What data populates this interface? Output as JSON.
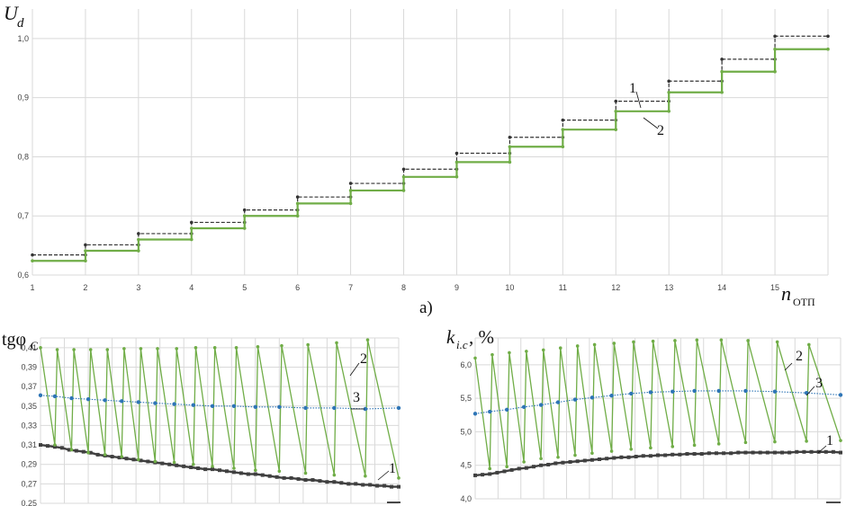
{
  "chart_data": [
    {
      "type": "line",
      "ylabel_main": "U",
      "ylabel_sub": "d",
      "xlabel_main": "n",
      "xlabel_sub": "ОТП",
      "panel_label": "а)",
      "xlim": [
        1,
        16
      ],
      "ylim": [
        0.6,
        1.05
      ],
      "y_ticks": [
        "0,6",
        "0,7",
        "0,8",
        "0,9",
        "1,0"
      ],
      "x_ticks": [
        "1",
        "2",
        "3",
        "4",
        "5",
        "6",
        "7",
        "8",
        "9",
        "10",
        "11",
        "12",
        "13",
        "14",
        "15"
      ],
      "colors": {
        "1": "#333333",
        "2": "#70ad47"
      },
      "series": [
        {
          "name": "1",
          "style": "dashed-step",
          "values": [
            0.634,
            0.651,
            0.67,
            0.689,
            0.71,
            0.732,
            0.755,
            0.779,
            0.806,
            0.833,
            0.862,
            0.894,
            0.928,
            0.965,
            1.004
          ]
        },
        {
          "name": "2",
          "style": "solid-step",
          "values": [
            0.624,
            0.641,
            0.66,
            0.679,
            0.7,
            0.721,
            0.743,
            0.766,
            0.791,
            0.817,
            0.846,
            0.877,
            0.909,
            0.944,
            0.982
          ]
        }
      ],
      "annotations": [
        "1",
        "2"
      ]
    },
    {
      "type": "line",
      "ylabel": "tgφ",
      "ylabel_sub": "С",
      "ylim": [
        0.25,
        0.42
      ],
      "y_ticks": [
        "0,25",
        "0,27",
        "0,29",
        "0,31",
        "0,33",
        "0,35",
        "0,37",
        "0,39",
        "0,41"
      ],
      "colors": {
        "1": "#404040",
        "2": "#70ad47",
        "3": "#2e75b6"
      },
      "series": [
        {
          "name": "1",
          "x": [
            1,
            1.3,
            1.6,
            1.9,
            2.2,
            2.5,
            2.8,
            3.1,
            3.4,
            3.7,
            4,
            4.3,
            4.6,
            4.9,
            5.2,
            5.5,
            5.8,
            6.1,
            6.4,
            6.7,
            7,
            7.3,
            7.6,
            7.9,
            8.2,
            8.5,
            8.8,
            9.1,
            9.4,
            9.7,
            10,
            10.3,
            10.6,
            10.9,
            11.2,
            11.5,
            11.8,
            12.1,
            12.4,
            12.7,
            13,
            13.3,
            13.6,
            13.9,
            14.2,
            14.5,
            14.8,
            15.1,
            15.4,
            15.7,
            16
          ],
          "values": [
            0.31,
            0.309,
            0.308,
            0.307,
            0.305,
            0.304,
            0.303,
            0.302,
            0.3,
            0.299,
            0.298,
            0.297,
            0.296,
            0.295,
            0.294,
            0.293,
            0.292,
            0.291,
            0.29,
            0.289,
            0.288,
            0.287,
            0.286,
            0.285,
            0.285,
            0.284,
            0.283,
            0.282,
            0.281,
            0.28,
            0.28,
            0.279,
            0.278,
            0.277,
            0.276,
            0.276,
            0.275,
            0.274,
            0.274,
            0.273,
            0.272,
            0.272,
            0.271,
            0.27,
            0.27,
            0.269,
            0.269,
            0.268,
            0.268,
            0.267,
            0.267
          ]
        },
        {
          "name": "2",
          "x": [
            1,
            1.6,
            1.7,
            2.3,
            2.4,
            3.0,
            3.1,
            3.7,
            3.8,
            4.4,
            4.5,
            5.1,
            5.2,
            5.8,
            5.9,
            6.6,
            6.7,
            7.4,
            7.5,
            8.2,
            8.3,
            9.1,
            9.2,
            10.0,
            10.1,
            11.0,
            11.1,
            12.1,
            12.2,
            13.3,
            13.4,
            14.6,
            14.7,
            16
          ],
          "values": [
            0.41,
            0.31,
            0.408,
            0.305,
            0.408,
            0.302,
            0.408,
            0.3,
            0.408,
            0.298,
            0.409,
            0.295,
            0.409,
            0.293,
            0.409,
            0.292,
            0.409,
            0.29,
            0.41,
            0.288,
            0.41,
            0.286,
            0.41,
            0.284,
            0.411,
            0.283,
            0.412,
            0.281,
            0.413,
            0.279,
            0.415,
            0.278,
            0.418,
            0.276
          ]
        },
        {
          "name": "3",
          "x": [
            1,
            1.6,
            2.3,
            3.0,
            3.7,
            4.4,
            5.1,
            5.8,
            6.6,
            7.4,
            8.2,
            9.1,
            10.0,
            11.0,
            12.1,
            13.3,
            14.6,
            16
          ],
          "values": [
            0.361,
            0.36,
            0.358,
            0.357,
            0.356,
            0.355,
            0.354,
            0.353,
            0.352,
            0.351,
            0.35,
            0.35,
            0.349,
            0.349,
            0.348,
            0.348,
            0.347,
            0.348
          ]
        }
      ],
      "annotations": [
        "1",
        "2",
        "3"
      ]
    },
    {
      "type": "line",
      "ylabel": "k",
      "ylabel_sub": "i.c",
      "ylabel_unit": ", %",
      "ylim": [
        4.0,
        6.4
      ],
      "y_ticks": [
        "4,0",
        "4,5",
        "5,0",
        "5,5",
        "6,0"
      ],
      "colors": {
        "1": "#404040",
        "2": "#70ad47",
        "3": "#2e75b6"
      },
      "series": [
        {
          "name": "1",
          "x": [
            1,
            1.3,
            1.6,
            1.9,
            2.2,
            2.5,
            2.8,
            3.1,
            3.4,
            3.7,
            4,
            4.3,
            4.6,
            4.9,
            5.2,
            5.5,
            5.8,
            6.1,
            6.4,
            6.7,
            7,
            7.3,
            7.6,
            7.9,
            8.2,
            8.5,
            8.8,
            9.1,
            9.4,
            9.7,
            10,
            10.3,
            10.6,
            10.9,
            11.2,
            11.5,
            11.8,
            12.1,
            12.4,
            12.7,
            13,
            13.3,
            13.6,
            13.9,
            14.2,
            14.5,
            14.8,
            15.1,
            15.4,
            15.7,
            16
          ],
          "values": [
            4.35,
            4.36,
            4.37,
            4.39,
            4.41,
            4.43,
            4.45,
            4.46,
            4.48,
            4.5,
            4.51,
            4.53,
            4.54,
            4.55,
            4.56,
            4.57,
            4.58,
            4.59,
            4.6,
            4.61,
            4.62,
            4.62,
            4.63,
            4.64,
            4.64,
            4.65,
            4.65,
            4.66,
            4.66,
            4.67,
            4.67,
            4.67,
            4.68,
            4.68,
            4.68,
            4.68,
            4.69,
            4.69,
            4.69,
            4.69,
            4.69,
            4.69,
            4.69,
            4.69,
            4.7,
            4.7,
            4.7,
            4.7,
            4.7,
            4.7,
            4.69
          ]
        },
        {
          "name": "2",
          "x": [
            1,
            1.6,
            1.7,
            2.3,
            2.4,
            3.0,
            3.1,
            3.7,
            3.8,
            4.4,
            4.5,
            5.1,
            5.2,
            5.8,
            5.9,
            6.6,
            6.7,
            7.4,
            7.5,
            8.2,
            8.3,
            9.1,
            9.2,
            10.0,
            10.1,
            11.0,
            11.1,
            12.1,
            12.2,
            13.3,
            13.4,
            14.6,
            14.7,
            16
          ],
          "values": [
            6.1,
            4.45,
            6.15,
            4.48,
            6.18,
            4.55,
            6.2,
            4.6,
            6.22,
            4.62,
            6.25,
            4.65,
            6.28,
            4.68,
            6.3,
            4.71,
            6.32,
            4.74,
            6.34,
            4.76,
            6.35,
            4.78,
            6.36,
            4.8,
            6.37,
            4.82,
            6.37,
            4.84,
            6.36,
            4.85,
            6.34,
            4.86,
            6.3,
            4.87
          ]
        },
        {
          "name": "3",
          "x": [
            1,
            1.6,
            2.3,
            3.0,
            3.7,
            4.4,
            5.1,
            5.8,
            6.6,
            7.4,
            8.2,
            9.1,
            10.0,
            11.0,
            12.1,
            13.3,
            14.6,
            16
          ],
          "values": [
            5.27,
            5.3,
            5.33,
            5.37,
            5.4,
            5.44,
            5.48,
            5.51,
            5.54,
            5.57,
            5.59,
            5.6,
            5.61,
            5.61,
            5.61,
            5.6,
            5.58,
            5.55
          ]
        }
      ],
      "annotations": [
        "1",
        "2",
        "3"
      ]
    }
  ]
}
